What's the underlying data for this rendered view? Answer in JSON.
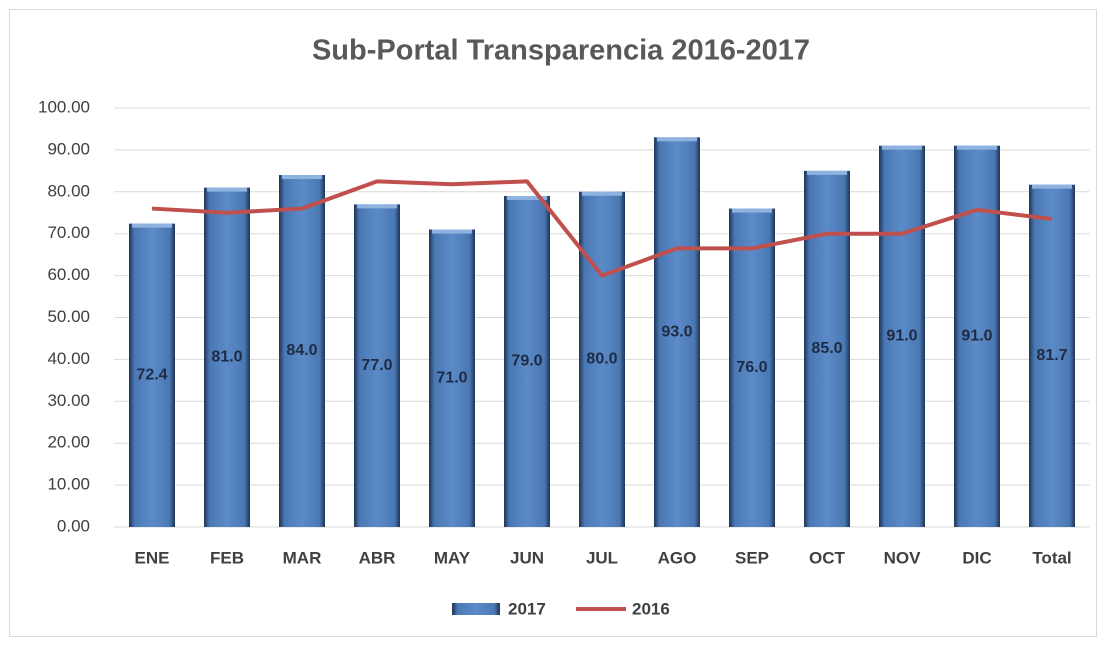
{
  "chart_data": {
    "type": "bar_line",
    "title": "Sub-Portal Transparencia 2016-2017",
    "categories": [
      "ENE",
      "FEB",
      "MAR",
      "ABR",
      "MAY",
      "JUN",
      "JUL",
      "AGO",
      "SEP",
      "OCT",
      "NOV",
      "DIC",
      "Total"
    ],
    "series": [
      {
        "name": "2017",
        "type": "bar",
        "color": "#4f81bd",
        "values": [
          72.4,
          81.0,
          84.0,
          77.0,
          71.0,
          79.0,
          80.0,
          93.0,
          76.0,
          85.0,
          91.0,
          91.0,
          81.7
        ],
        "value_labels": [
          "72.4",
          "81.0",
          "84.0",
          "77.0",
          "71.0",
          "79.0",
          "80.0",
          "93.0",
          "76.0",
          "85.0",
          "91.0",
          "91.0",
          "81.7"
        ]
      },
      {
        "name": "2016",
        "type": "line",
        "color": "#c0504d",
        "values": [
          76,
          75,
          76,
          82.5,
          81.8,
          82.5,
          60,
          66.5,
          66.5,
          70,
          70,
          75.7,
          73.5
        ]
      }
    ],
    "ylim": [
      0,
      100
    ],
    "yticks": [
      {
        "value": 0,
        "label": "0.00"
      },
      {
        "value": 10,
        "label": "10.00"
      },
      {
        "value": 20,
        "label": "20.00"
      },
      {
        "value": 30,
        "label": "30.00"
      },
      {
        "value": 40,
        "label": "40.00"
      },
      {
        "value": 50,
        "label": "50.00"
      },
      {
        "value": 60,
        "label": "60.00"
      },
      {
        "value": 70,
        "label": "70.00"
      },
      {
        "value": 80,
        "label": "80.00"
      },
      {
        "value": 90,
        "label": "90.00"
      },
      {
        "value": 100,
        "label": "100.00"
      }
    ],
    "grid": true,
    "legend": "bottom"
  }
}
